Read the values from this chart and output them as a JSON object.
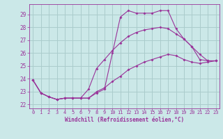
{
  "xlabel": "Windchill (Refroidissement éolien,°C)",
  "background_color": "#cbe8e8",
  "grid_color": "#aacccc",
  "line_color": "#993399",
  "x_ticks": [
    0,
    1,
    2,
    3,
    4,
    5,
    6,
    7,
    8,
    9,
    10,
    11,
    12,
    13,
    14,
    15,
    16,
    17,
    18,
    19,
    20,
    21,
    22,
    23
  ],
  "ylim": [
    21.7,
    29.8
  ],
  "xlim": [
    -0.5,
    23.5
  ],
  "series": [
    [
      23.9,
      22.9,
      22.6,
      22.4,
      22.5,
      22.5,
      22.5,
      22.5,
      22.9,
      23.2,
      26.0,
      28.8,
      29.3,
      29.1,
      29.1,
      29.1,
      29.3,
      29.3,
      27.9,
      27.1,
      26.5,
      25.5,
      25.4,
      25.4
    ],
    [
      23.9,
      22.9,
      22.6,
      22.4,
      22.5,
      22.5,
      22.5,
      23.2,
      24.8,
      25.5,
      26.2,
      26.8,
      27.3,
      27.6,
      27.8,
      27.9,
      28.0,
      27.9,
      27.5,
      27.1,
      26.5,
      25.9,
      25.4,
      25.4
    ],
    [
      23.9,
      22.9,
      22.6,
      22.4,
      22.5,
      22.5,
      22.5,
      22.5,
      23.0,
      23.3,
      23.8,
      24.2,
      24.7,
      25.0,
      25.3,
      25.5,
      25.7,
      25.9,
      25.8,
      25.5,
      25.3,
      25.2,
      25.3,
      25.4
    ]
  ]
}
